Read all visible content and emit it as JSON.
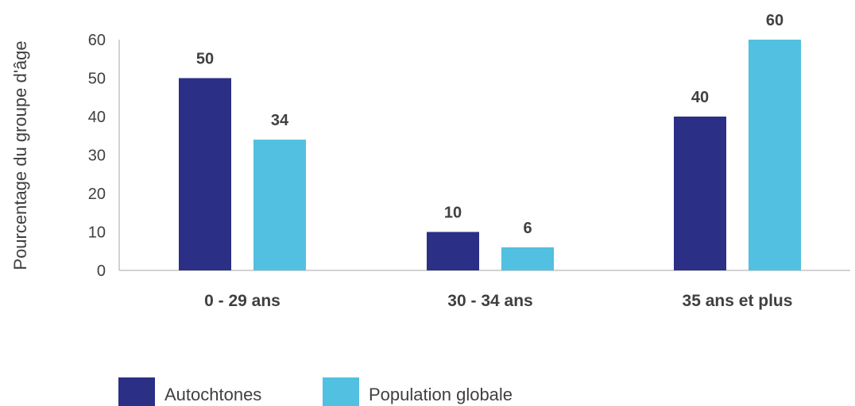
{
  "chart_data": {
    "type": "bar",
    "title": "",
    "xlabel": "",
    "ylabel": "Pourcentage du groupe d'âge",
    "categories": [
      "0 - 29 ans",
      "30 - 34 ans",
      "35 ans et plus"
    ],
    "series": [
      {
        "name": "Autochtones",
        "values": [
          50,
          10,
          40
        ],
        "color": "#2b2f86"
      },
      {
        "name": "Population globale",
        "values": [
          34,
          6,
          60
        ],
        "color": "#52c0e0"
      }
    ],
    "ylim": [
      0,
      60
    ],
    "yticks": [
      "0",
      "10",
      "20",
      "30",
      "40",
      "50",
      "60"
    ],
    "data_labels": true,
    "grid": false,
    "legend": "bottom-left"
  }
}
